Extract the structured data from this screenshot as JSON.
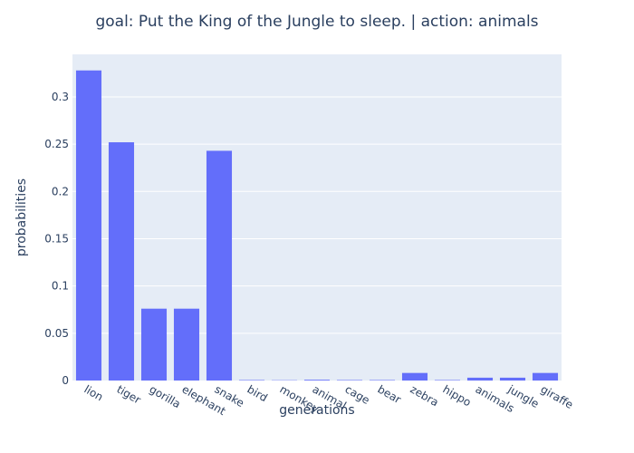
{
  "chart_data": {
    "type": "bar",
    "title": "goal: Put the King of the Jungle to sleep. | action: animals",
    "xlabel": "generations",
    "ylabel": "probabilities",
    "categories": [
      "lion",
      "tiger",
      "gorilla",
      "elephant",
      "snake",
      "bird",
      "monkey",
      "animal",
      "cage",
      "bear",
      "zebra",
      "hippo",
      "animals",
      "jungle",
      "giraffe"
    ],
    "values": [
      0.328,
      0.252,
      0.076,
      0.076,
      0.243,
      0.0005,
      0.0003,
      0.0008,
      0.0005,
      0.0005,
      0.008,
      0.0005,
      0.003,
      0.003,
      0.008
    ],
    "ylim": [
      0,
      0.345
    ],
    "yticks": [
      0,
      0.05,
      0.1,
      0.15,
      0.2,
      0.25,
      0.3
    ],
    "ytick_labels": [
      "0",
      "0.05",
      "0.1",
      "0.15",
      "0.2",
      "0.25",
      "0.3"
    ],
    "bar_color": "#636efa",
    "plot_bg": "#e5ecf6",
    "grid": true
  }
}
